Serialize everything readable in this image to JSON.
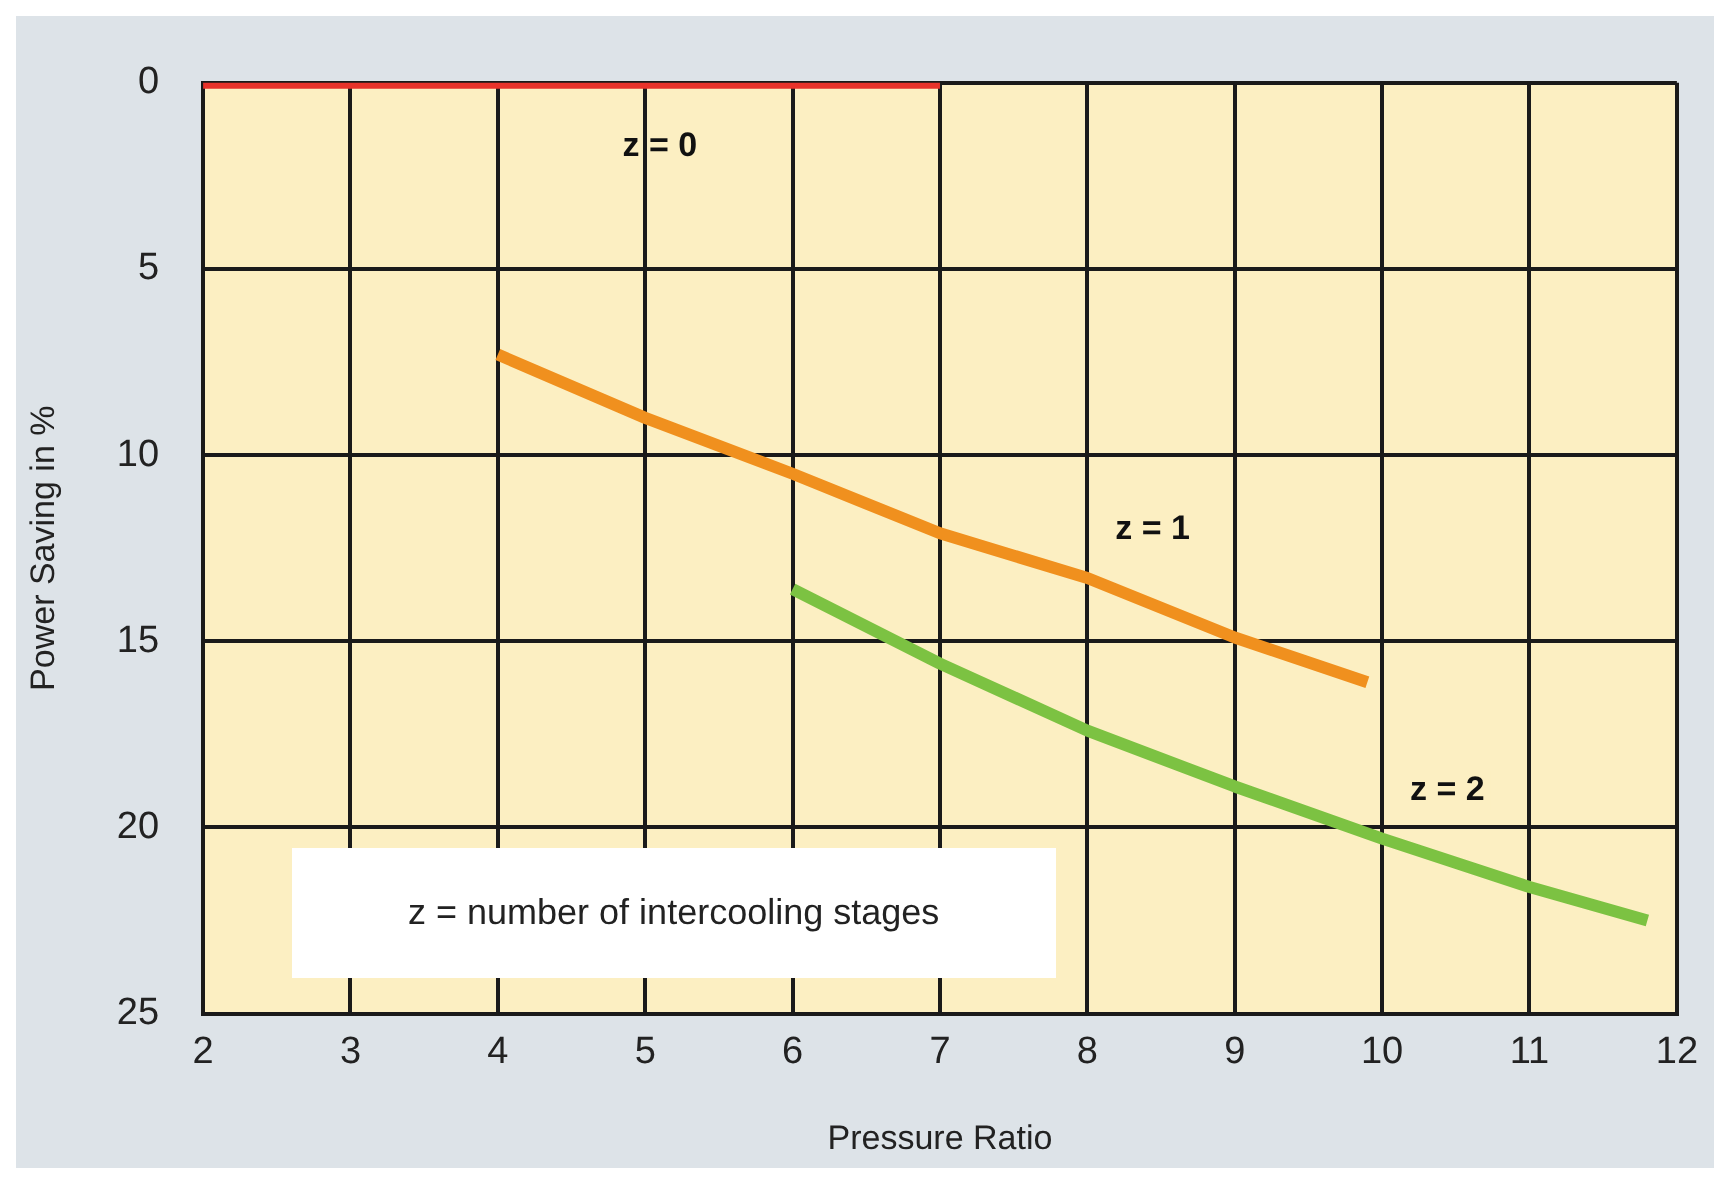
{
  "chart_data": {
    "type": "line",
    "xlabel": "Pressure Ratio",
    "ylabel": "Power Saving in %",
    "xlim": [
      2,
      12
    ],
    "xticks": [
      2,
      3,
      4,
      5,
      6,
      7,
      8,
      9,
      10,
      11,
      12
    ],
    "ylim": [
      25,
      0
    ],
    "yticks": [
      0,
      5,
      10,
      15,
      20,
      25
    ],
    "grid": true,
    "legend": false,
    "marker": "none",
    "line_style": "solid",
    "series": [
      {
        "name": "z = 0",
        "color": "#e8322a",
        "x": [
          2,
          7
        ],
        "values": [
          0,
          0
        ]
      },
      {
        "name": "z = 1",
        "color": "#f0901e",
        "x": [
          4,
          5,
          6,
          7,
          8,
          9,
          9.9
        ],
        "values": [
          7.3,
          9.0,
          10.5,
          12.1,
          13.3,
          14.9,
          16.1
        ]
      },
      {
        "name": "z = 2",
        "color": "#7cc242",
        "x": [
          6,
          7,
          8,
          9,
          10,
          11,
          11.8
        ],
        "values": [
          13.6,
          15.6,
          17.4,
          18.9,
          20.3,
          21.6,
          22.5
        ]
      }
    ],
    "annotations": [
      "z = number of intercooling stages"
    ]
  }
}
